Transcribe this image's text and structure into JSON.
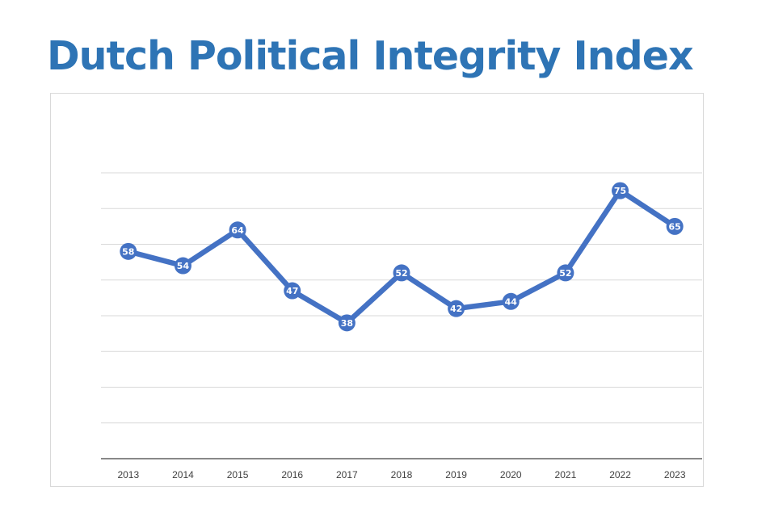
{
  "title": "Dutch Political Integrity Index",
  "chart_data": {
    "type": "line",
    "title": "Dutch Political Integrity Index",
    "categories": [
      "2013",
      "2014",
      "2015",
      "2016",
      "2017",
      "2018",
      "2019",
      "2020",
      "2021",
      "2022",
      "2023"
    ],
    "series": [
      {
        "values": [
          58,
          54,
          64,
          47,
          38,
          52,
          42,
          44,
          52,
          75,
          65
        ]
      }
    ],
    "ylim": [
      0,
      80
    ],
    "y_gridlines": [
      10,
      20,
      30,
      40,
      50,
      60,
      70,
      80
    ],
    "y_tick_labels_shown": false,
    "data_labels": true,
    "grid": true,
    "legend": "none",
    "colors": {
      "line": "#4472c4",
      "title": "#2e74b5",
      "grid": "#d9d9d9",
      "axis": "#404040"
    }
  }
}
